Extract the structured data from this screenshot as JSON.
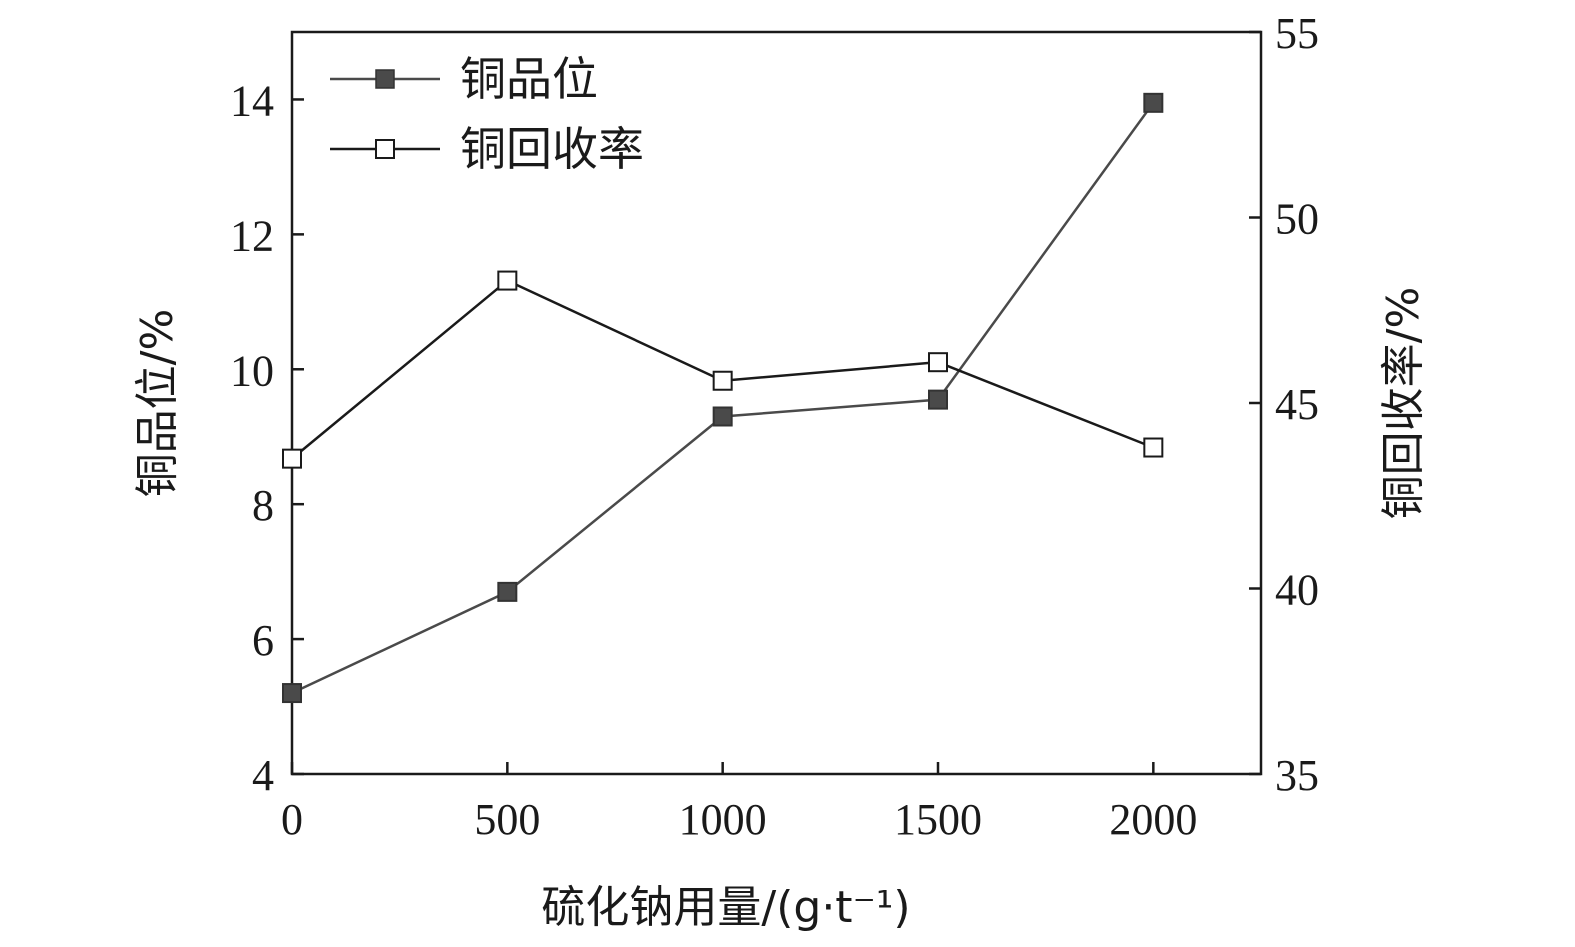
{
  "chart_data": {
    "type": "line",
    "x": [
      0,
      500,
      1000,
      1500,
      2000
    ],
    "xlabel": "硫化钠用量/(g·t⁻¹)",
    "xlim": [
      0,
      2250
    ],
    "xticks": [
      "0",
      "500",
      "1000",
      "1500",
      "2000"
    ],
    "ylabel_left": "铜品位/%",
    "ylim_left": [
      4,
      15
    ],
    "yticks_left": [
      "4",
      "6",
      "8",
      "10",
      "12",
      "14"
    ],
    "ylabel_right": "铜回收率/%",
    "ylim_right": [
      35,
      55
    ],
    "yticks_right": [
      "35",
      "40",
      "45",
      "50",
      "55"
    ],
    "legend_position": "top-left",
    "grid": false,
    "series": [
      {
        "name": "铜品位",
        "axis": "left",
        "marker": "filled-square",
        "color": "#4a4a4a",
        "values": [
          5.2,
          6.7,
          9.3,
          9.55,
          13.95
        ]
      },
      {
        "name": "铜回收率",
        "axis": "right",
        "marker": "open-square",
        "color": "#1a1a1a",
        "values": [
          43.5,
          48.3,
          45.6,
          46.1,
          43.8
        ]
      }
    ]
  }
}
